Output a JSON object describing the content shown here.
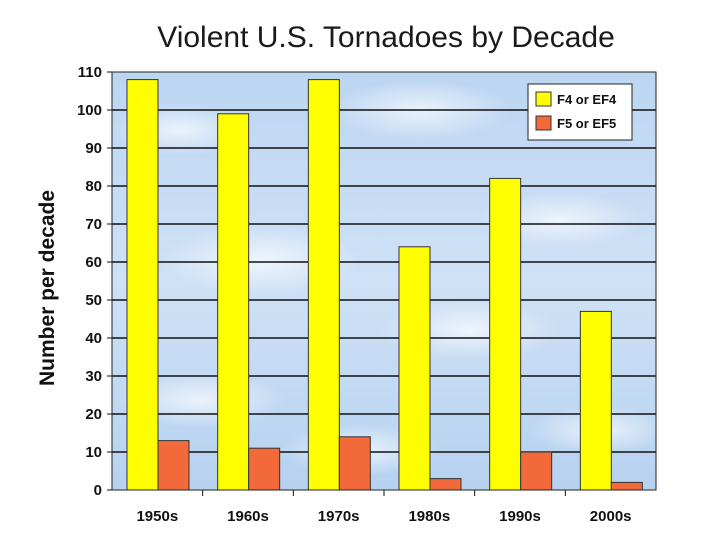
{
  "chart_data": {
    "type": "bar",
    "title": "Violent U.S. Tornadoes by Decade",
    "xlabel": "",
    "ylabel": "Number per decade",
    "ylim": [
      0,
      110
    ],
    "ytick_step": 10,
    "grid": true,
    "legend_position": "top-right",
    "categories": [
      "1950s",
      "1960s",
      "1970s",
      "1980s",
      "1990s",
      "2000s"
    ],
    "series": [
      {
        "name": "F4 or EF4",
        "color": "#FFFF00",
        "values": [
          108,
          99,
          108,
          64,
          82,
          47
        ]
      },
      {
        "name": "F5 or EF5",
        "color": "#F26A3A",
        "values": [
          13,
          11,
          14,
          3,
          10,
          2
        ]
      }
    ]
  }
}
